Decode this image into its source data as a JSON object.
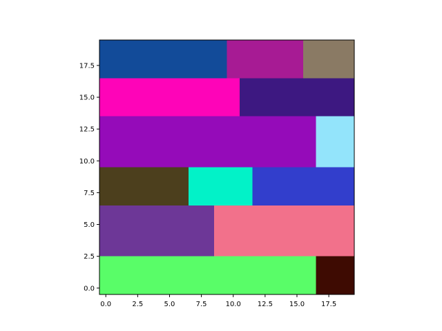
{
  "chart_data": {
    "type": "heatmap",
    "title": "",
    "xlabel": "",
    "ylabel": "",
    "xlim": [
      -0.5,
      19.5
    ],
    "ylim": [
      -0.5,
      19.5
    ],
    "grid": false,
    "x_ticks": [
      0.0,
      2.5,
      5.0,
      7.5,
      10.0,
      12.5,
      15.0,
      17.5
    ],
    "x_tick_labels": [
      "0.0",
      "2.5",
      "5.0",
      "7.5",
      "10.0",
      "12.5",
      "15.0",
      "17.5"
    ],
    "y_ticks": [
      0.0,
      2.5,
      5.0,
      7.5,
      10.0,
      12.5,
      15.0,
      17.5
    ],
    "y_tick_labels": [
      "0.0",
      "2.5",
      "5.0",
      "7.5",
      "10.0",
      "12.5",
      "15.0",
      "17.5"
    ],
    "regions": [
      {
        "x0": -0.5,
        "x1": 9.5,
        "y0": 16.5,
        "y1": 19.5,
        "color": "#124b99"
      },
      {
        "x0": 9.5,
        "x1": 15.5,
        "y0": 16.5,
        "y1": 19.5,
        "color": "#a71b94"
      },
      {
        "x0": 15.5,
        "x1": 19.5,
        "y0": 16.5,
        "y1": 19.5,
        "color": "#8a7a64"
      },
      {
        "x0": -0.5,
        "x1": 10.5,
        "y0": 13.5,
        "y1": 16.5,
        "color": "#fe04b8"
      },
      {
        "x0": 10.5,
        "x1": 19.5,
        "y0": 13.5,
        "y1": 16.5,
        "color": "#3d1881"
      },
      {
        "x0": -0.5,
        "x1": 16.5,
        "y0": 9.5,
        "y1": 13.5,
        "color": "#950bb9"
      },
      {
        "x0": 16.5,
        "x1": 19.5,
        "y0": 9.5,
        "y1": 13.5,
        "color": "#93e4fb"
      },
      {
        "x0": -0.5,
        "x1": 6.5,
        "y0": 6.5,
        "y1": 9.5,
        "color": "#4c3f1d"
      },
      {
        "x0": 6.5,
        "x1": 11.5,
        "y0": 6.5,
        "y1": 9.5,
        "color": "#02f2c8"
      },
      {
        "x0": 11.5,
        "x1": 19.5,
        "y0": 6.5,
        "y1": 9.5,
        "color": "#323ecc"
      },
      {
        "x0": -0.5,
        "x1": 8.5,
        "y0": 2.5,
        "y1": 6.5,
        "color": "#6d3797"
      },
      {
        "x0": 8.5,
        "x1": 19.5,
        "y0": 2.5,
        "y1": 6.5,
        "color": "#f2718b"
      },
      {
        "x0": -0.5,
        "x1": 16.5,
        "y0": -0.5,
        "y1": 2.5,
        "color": "#59fd68"
      },
      {
        "x0": 16.5,
        "x1": 19.5,
        "y0": -0.5,
        "y1": 2.5,
        "color": "#3e0b02"
      }
    ]
  }
}
